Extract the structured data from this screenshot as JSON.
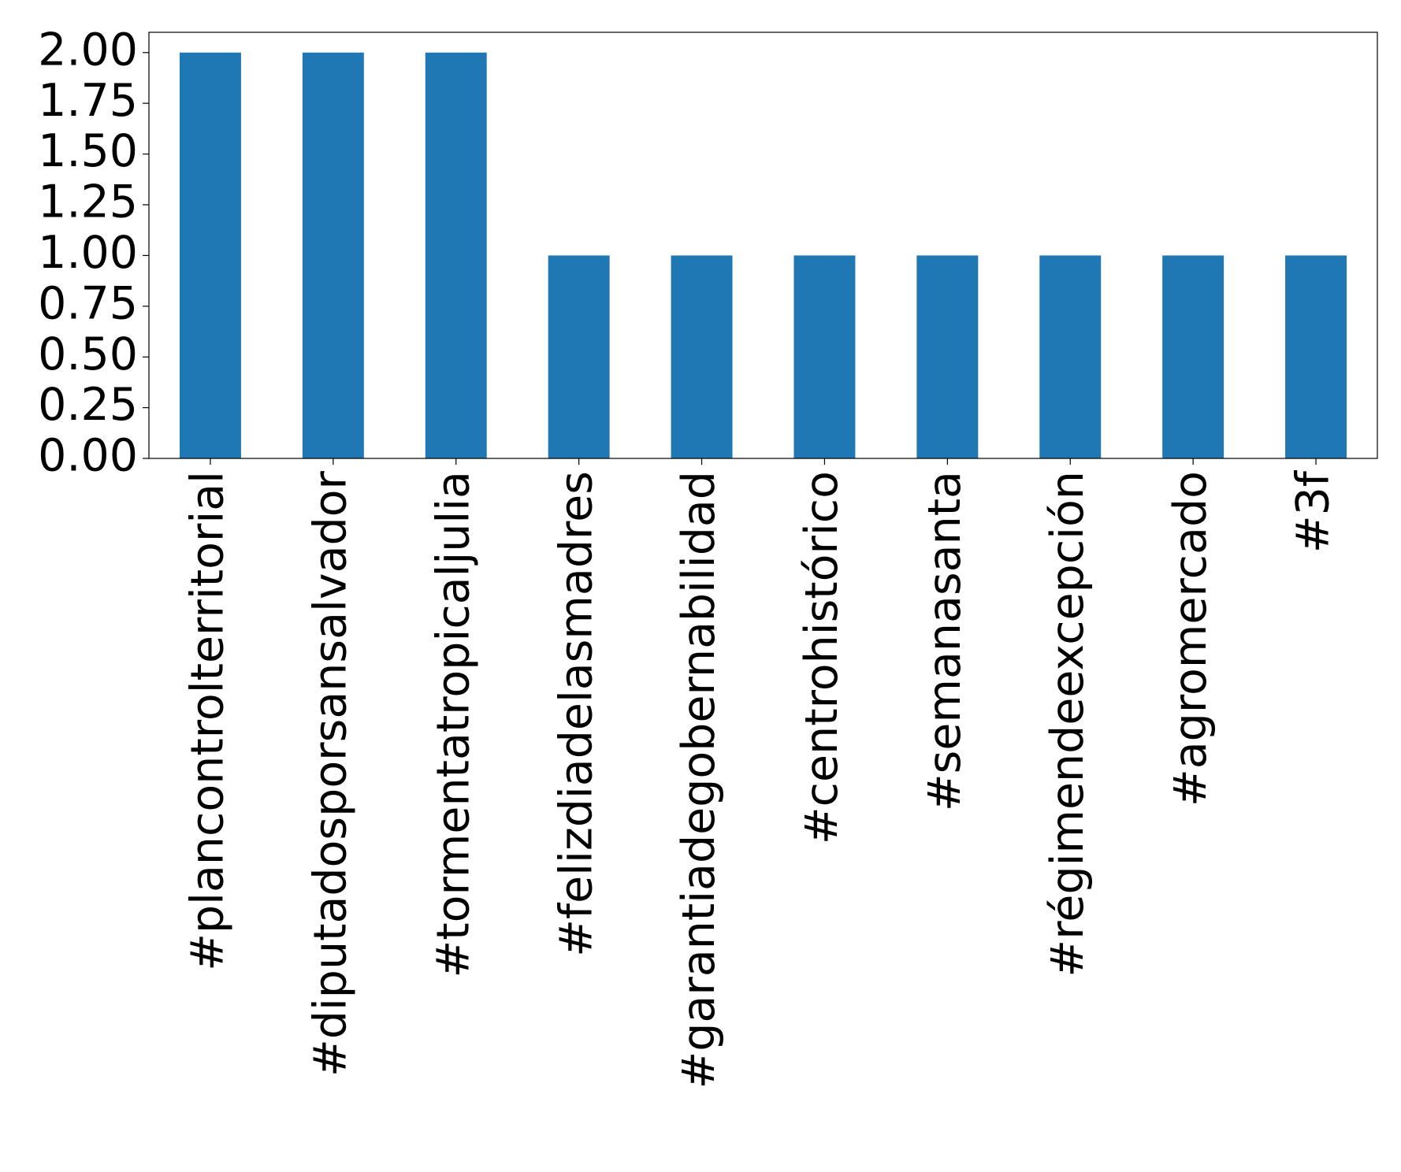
{
  "chart_data": {
    "type": "bar",
    "categories": [
      "#plancontrolterritorial",
      "#diputadosporsansalvador",
      "#tormentatropicaljulia",
      "#felizdiadelasmadres",
      "#garantiadegobernabilidad",
      "#centrohistórico",
      "#semanasanta",
      "#régimendeexcepción",
      "#agromercado",
      "#3f"
    ],
    "values": [
      2,
      2,
      2,
      1,
      1,
      1,
      1,
      1,
      1,
      1
    ],
    "color": "#1f77b4",
    "ylim": [
      0,
      2.1
    ],
    "yticks": [
      {
        "value": 0,
        "label": "0.00"
      },
      {
        "value": 0.25,
        "label": "0.25"
      },
      {
        "value": 0.5,
        "label": "0.50"
      },
      {
        "value": 0.75,
        "label": "0.75"
      },
      {
        "value": 1,
        "label": "1.00"
      },
      {
        "value": 1.25,
        "label": "1.25"
      },
      {
        "value": 1.5,
        "label": "1.50"
      },
      {
        "value": 1.75,
        "label": "1.75"
      },
      {
        "value": 2,
        "label": "2.00"
      }
    ],
    "grid": false
  }
}
